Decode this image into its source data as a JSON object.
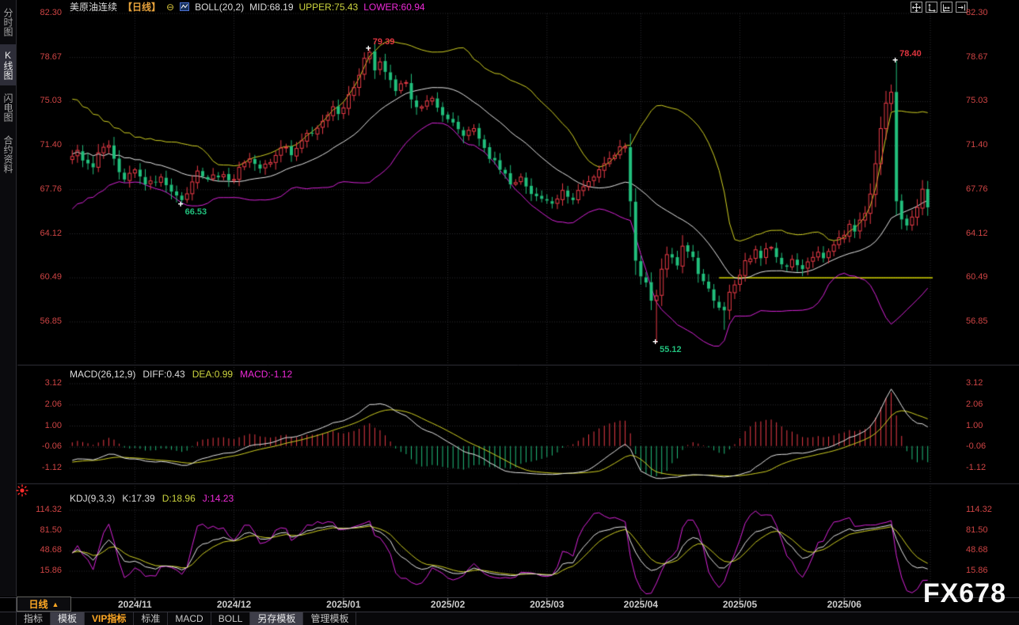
{
  "header": {
    "symbol": "美原油连续",
    "period_tag": "【日线】",
    "boll_label": "BOLL(20,2)",
    "mid": "MID:68.19",
    "upper": "UPPER:75.43",
    "lower": "LOWER:60.94"
  },
  "icons": {
    "collapse": "⊖",
    "period_arrow": "▲",
    "price_marker": "+",
    "mini_chart": "candlestick-thumbnail",
    "alert": "red-starburst",
    "window_controls": [
      "pan-crosshair",
      "scale-y-axis",
      "scale-x-axis",
      "collapse-panel"
    ]
  },
  "sidebar": {
    "items": [
      {
        "label": "分时图",
        "selected": false
      },
      {
        "label": "K线图",
        "selected": true
      },
      {
        "label": "闪电图",
        "selected": false
      },
      {
        "label": "合约资料",
        "selected": false
      }
    ]
  },
  "xaxis": {
    "period_label": "日线"
  },
  "toolbar": {
    "tabs": [
      {
        "label": "指标",
        "highlighted": false,
        "accent": false
      },
      {
        "label": "模板",
        "highlighted": true,
        "accent": false
      },
      {
        "label": "VIP指标",
        "highlighted": false,
        "accent": true
      },
      {
        "label": "标准",
        "highlighted": false,
        "accent": false
      },
      {
        "label": "MACD",
        "highlighted": false,
        "accent": false
      },
      {
        "label": "BOLL",
        "highlighted": false,
        "accent": false
      },
      {
        "label": "另存模板",
        "highlighted": true,
        "accent": false
      },
      {
        "label": "管理模板",
        "highlighted": false,
        "accent": false
      }
    ]
  },
  "watermark": "FX678",
  "colors": {
    "up_candle": "#ea3b47",
    "down_candle": "#21bf7c",
    "boll_mid": "#e6e6e6",
    "boll_upper": "#d0d022",
    "boll_lower": "#d823d8",
    "axis_label": "#ce4444",
    "month_label": "#cbcbcb",
    "accent_orange": "#ffa824",
    "support_line": "#ffff00",
    "grid": "#2c2c31",
    "separator": "#33333b",
    "hist_pos": "#ea3b47",
    "hist_neg": "#21bf7c",
    "annotation_high": "#e0353f",
    "annotation_low": "#21bf7c"
  },
  "chart_data": [
    {
      "id": "main",
      "type": "candlestick",
      "symbol": "美原油连续",
      "period": "日线",
      "overlay": "BOLL(20,2)",
      "overlay_values": {
        "mid": 68.19,
        "upper": 75.43,
        "lower": 60.94
      },
      "y_ticks": [
        "82.30",
        "78.67",
        "75.03",
        "71.40",
        "67.76",
        "64.12",
        "60.49",
        "56.85"
      ],
      "x_ticks": [
        {
          "label": "2024/11",
          "index": 12
        },
        {
          "label": "2024/12",
          "index": 31
        },
        {
          "label": "2025/01",
          "index": 52
        },
        {
          "label": "2025/02",
          "index": 72
        },
        {
          "label": "2025/03",
          "index": 91
        },
        {
          "label": "2025/04",
          "index": 109
        },
        {
          "label": "2025/05",
          "index": 128
        },
        {
          "label": "2025/06",
          "index": 148
        }
      ],
      "n_candles": 165,
      "close_anchors": [
        [
          0,
          70.5
        ],
        [
          1,
          71.0
        ],
        [
          4,
          69.6
        ],
        [
          5,
          70.8
        ],
        [
          7,
          71.4
        ],
        [
          9,
          69.2
        ],
        [
          10,
          68.6
        ],
        [
          12,
          69.4
        ],
        [
          14,
          68.2
        ],
        [
          17,
          68.8
        ],
        [
          19,
          67.6
        ],
        [
          21,
          66.9
        ],
        [
          23,
          68.4
        ],
        [
          24,
          69.3
        ],
        [
          26,
          68.6
        ],
        [
          29,
          69.0
        ],
        [
          31,
          68.6
        ],
        [
          32,
          69.6
        ],
        [
          34,
          70.3
        ],
        [
          36,
          69.5
        ],
        [
          38,
          70.0
        ],
        [
          40,
          71.2
        ],
        [
          42,
          70.6
        ],
        [
          44,
          71.8
        ],
        [
          46,
          72.4
        ],
        [
          48,
          73.4
        ],
        [
          50,
          74.6
        ],
        [
          51,
          74.0
        ],
        [
          53,
          75.6
        ],
        [
          55,
          77.2
        ],
        [
          56,
          78.6
        ],
        [
          57,
          79.1
        ],
        [
          58,
          77.6
        ],
        [
          59,
          78.3
        ],
        [
          61,
          76.8
        ],
        [
          62,
          75.9
        ],
        [
          64,
          76.6
        ],
        [
          65,
          75.2
        ],
        [
          67,
          74.6
        ],
        [
          69,
          75.3
        ],
        [
          71,
          73.9
        ],
        [
          73,
          73.3
        ],
        [
          75,
          72.2
        ],
        [
          77,
          72.8
        ],
        [
          79,
          71.2
        ],
        [
          80,
          70.3
        ],
        [
          82,
          69.4
        ],
        [
          84,
          68.2
        ],
        [
          86,
          68.8
        ],
        [
          88,
          67.4
        ],
        [
          90,
          67.0
        ],
        [
          92,
          66.6
        ],
        [
          94,
          67.7
        ],
        [
          96,
          66.9
        ],
        [
          98,
          68.0
        ],
        [
          100,
          68.8
        ],
        [
          102,
          69.9
        ],
        [
          104,
          70.6
        ],
        [
          106,
          71.3
        ],
        [
          107,
          66.8
        ],
        [
          108,
          61.9
        ],
        [
          109,
          60.6
        ],
        [
          110,
          60.1
        ],
        [
          111,
          58.6
        ],
        [
          112,
          59.0
        ],
        [
          113,
          61.2
        ],
        [
          114,
          62.4
        ],
        [
          116,
          61.5
        ],
        [
          117,
          63.1
        ],
        [
          119,
          62.2
        ],
        [
          120,
          60.8
        ],
        [
          122,
          59.6
        ],
        [
          123,
          58.6
        ],
        [
          125,
          57.8
        ],
        [
          126,
          59.3
        ],
        [
          128,
          60.7
        ],
        [
          129,
          61.9
        ],
        [
          131,
          62.8
        ],
        [
          132,
          62.1
        ],
        [
          134,
          63.0
        ],
        [
          135,
          62.2
        ],
        [
          137,
          61.4
        ],
        [
          138,
          62.0
        ],
        [
          140,
          61.2
        ],
        [
          141,
          61.8
        ],
        [
          143,
          62.6
        ],
        [
          144,
          62.1
        ],
        [
          146,
          63.2
        ],
        [
          147,
          63.8
        ],
        [
          149,
          64.9
        ],
        [
          150,
          64.3
        ],
        [
          152,
          65.8
        ],
        [
          153,
          67.4
        ],
        [
          154,
          69.9
        ],
        [
          155,
          72.8
        ],
        [
          156,
          74.9
        ],
        [
          157,
          75.8
        ],
        [
          158,
          66.8
        ],
        [
          159,
          65.3
        ],
        [
          160,
          64.8
        ],
        [
          161,
          65.5
        ],
        [
          162,
          66.3
        ],
        [
          163,
          67.8
        ],
        [
          164,
          66.3
        ]
      ],
      "wick_overrides": [
        {
          "index": 21,
          "low": 66.53
        },
        {
          "index": 57,
          "high": 79.39
        },
        {
          "index": 112,
          "low": 55.12
        },
        {
          "index": 125,
          "low": 56.2
        },
        {
          "index": 158,
          "high": 78.4
        }
      ],
      "annotations": [
        {
          "index": 57,
          "price": 79.39,
          "label": "79.39",
          "side": "high",
          "color": "#e0353f"
        },
        {
          "index": 158,
          "price": 78.4,
          "label": "78.40",
          "side": "high",
          "color": "#e0353f"
        },
        {
          "index": 21,
          "price": 66.53,
          "label": "66.53",
          "side": "low",
          "color": "#21bf7c"
        },
        {
          "index": 112,
          "price": 55.12,
          "label": "55.12",
          "side": "low",
          "color": "#21bf7c"
        }
      ],
      "support_line": {
        "price": 60.49,
        "start_index": 124
      }
    },
    {
      "id": "macd",
      "type": "macd",
      "header": {
        "label": "MACD(26,12,9)",
        "diff": "DIFF:0.43",
        "dea": "DEA:0.99",
        "macd": "MACD:-1.12"
      },
      "params": [
        26,
        12,
        9
      ],
      "current": {
        "diff": 0.43,
        "dea": 0.99,
        "macd": -1.12
      },
      "y_ticks": [
        "3.12",
        "2.06",
        "1.00",
        "-0.06",
        "-1.12"
      ]
    },
    {
      "id": "kdj",
      "type": "kdj",
      "header": {
        "label": "KDJ(9,3,3)",
        "k": "K:17.39",
        "d": "D:18.96",
        "j": "J:14.23"
      },
      "params": [
        9,
        3,
        3
      ],
      "current": {
        "k": 17.39,
        "d": 18.96,
        "j": 14.23
      },
      "y_ticks": [
        "114.32",
        "81.50",
        "48.68",
        "15.86"
      ]
    }
  ]
}
